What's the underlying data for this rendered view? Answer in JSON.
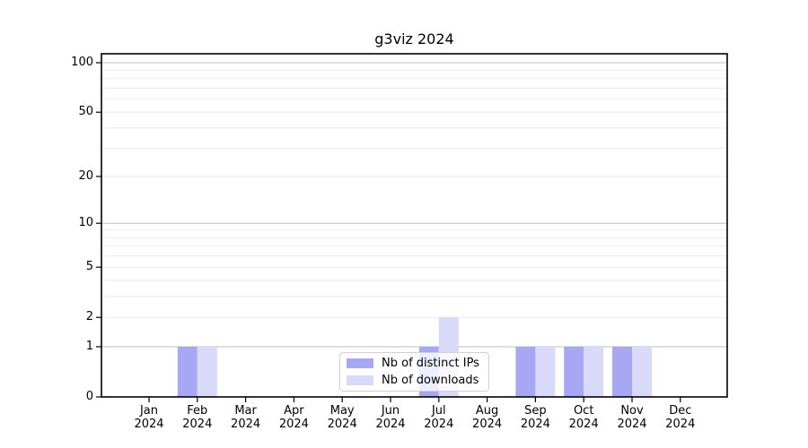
{
  "chart_data": {
    "type": "bar",
    "title": "g3viz 2024",
    "categories": [
      "Jan",
      "Feb",
      "Mar",
      "Apr",
      "May",
      "Jun",
      "Jul",
      "Aug",
      "Sep",
      "Oct",
      "Nov",
      "Dec"
    ],
    "category_year": "2024",
    "series": [
      {
        "name": "Nb of distinct IPs",
        "color": "#a7a7f4",
        "values": [
          0,
          1,
          0,
          0,
          0,
          0,
          1,
          0,
          1,
          1,
          1,
          0
        ]
      },
      {
        "name": "Nb of downloads",
        "color": "#d9d9f9",
        "values": [
          0,
          1,
          0,
          0,
          0,
          0,
          2,
          0,
          1,
          1,
          1,
          0
        ]
      }
    ],
    "yscale": "log1p",
    "ylim": [
      0,
      113
    ],
    "y_tick_labels": [
      0,
      1,
      2,
      5,
      10,
      20,
      50,
      100
    ],
    "y_major_gridlines": [
      1,
      10,
      100
    ],
    "y_minor_gridlines": [
      2,
      3,
      4,
      5,
      6,
      7,
      8,
      9,
      20,
      30,
      40,
      50,
      60,
      70,
      80,
      90
    ],
    "grid": true,
    "legend_position": "lower center inside",
    "colors": {
      "spine": "#000000",
      "major_grid": "#bdbdbd",
      "minor_grid": "#ebebeb",
      "tick": "#000000",
      "text": "#000000"
    }
  }
}
